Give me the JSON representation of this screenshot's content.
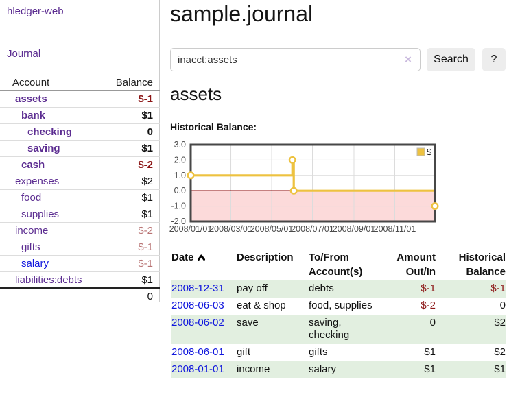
{
  "colors": {
    "link_purple": "#5c2d91",
    "link_blue": "#1016dd",
    "neg_strong": "#8b1414",
    "neg_soft": "#b87272",
    "row_green": "#e2efe0",
    "accent_gold": "#edc240"
  },
  "app": {
    "title": "hledger-web",
    "nav_journal_label": "Journal"
  },
  "sidebar": {
    "header": {
      "account": "Account",
      "balance": "Balance"
    },
    "accounts": [
      {
        "name": "assets",
        "balance": "$-1",
        "depth": 1,
        "bold": true,
        "balance_tone": "neg-strong"
      },
      {
        "name": "bank",
        "balance": "$1",
        "depth": 2,
        "bold": true,
        "balance_tone": "normal"
      },
      {
        "name": "checking",
        "balance": "0",
        "depth": 3,
        "bold": true,
        "balance_tone": "normal"
      },
      {
        "name": "saving",
        "balance": "$1",
        "depth": 3,
        "bold": true,
        "balance_tone": "normal"
      },
      {
        "name": "cash",
        "balance": "$-2",
        "depth": 2,
        "bold": true,
        "balance_tone": "neg-strong"
      },
      {
        "name": "expenses",
        "balance": "$2",
        "depth": 1,
        "bold": false,
        "balance_tone": "normal"
      },
      {
        "name": "food",
        "balance": "$1",
        "depth": 2,
        "bold": false,
        "balance_tone": "normal"
      },
      {
        "name": "supplies",
        "balance": "$1",
        "depth": 2,
        "bold": false,
        "balance_tone": "normal"
      },
      {
        "name": "income",
        "balance": "$-2",
        "depth": 1,
        "bold": false,
        "balance_tone": "neg-soft"
      },
      {
        "name": "gifts",
        "balance": "$-1",
        "depth": 2,
        "bold": false,
        "balance_tone": "neg-soft"
      },
      {
        "name": "salary",
        "balance": "$-1",
        "depth": 2,
        "bold": false,
        "balance_tone": "neg-soft",
        "link_tone": "unvisited"
      },
      {
        "name": "liabilities:debts",
        "balance": "$1",
        "depth": 1,
        "bold": false,
        "balance_tone": "normal",
        "last": true
      }
    ],
    "total": "0"
  },
  "main": {
    "title": "sample.journal",
    "search": {
      "value": "inacct:assets",
      "clear_icon": "×",
      "button_label": "Search",
      "help_label": "?"
    },
    "account_heading": "assets",
    "section_label": "Historical Balance:"
  },
  "chart_data": {
    "type": "line",
    "step": true,
    "title": "Historical Balance:",
    "x_domain": [
      "2008-01-01",
      "2008-12-31"
    ],
    "ylim": [
      -2.0,
      3.0
    ],
    "yticks": [
      "3.0",
      "2.0",
      "1.0",
      "0.0",
      "-1.0",
      "-2.0"
    ],
    "xticks": [
      "2008/01/01",
      "2008/03/01",
      "2008/05/01",
      "2008/07/01",
      "2008/09/01",
      "2008/11/01"
    ],
    "series": [
      {
        "name": "$",
        "color": "#edc240",
        "points": [
          [
            "2008-01-01",
            1
          ],
          [
            "2008-06-01",
            2
          ],
          [
            "2008-06-03",
            0
          ],
          [
            "2008-12-31",
            -1
          ]
        ]
      }
    ],
    "legend": {
      "label": "$",
      "position": "top-right"
    },
    "grid": {
      "on": true,
      "line_color": "#dcdcdc",
      "border_color": "#474747",
      "negative_fill": "#fcdada",
      "zero_line_color": "#8b0000",
      "tick_color": "#4a4a4a"
    }
  },
  "register": {
    "headers": {
      "date": "Date",
      "description": "Description",
      "accounts": "To/From Account(s)",
      "amount": "Amount Out/In",
      "balance": "Historical Balance"
    },
    "rows": [
      {
        "date": "2008-12-31",
        "description": "pay off",
        "accounts": "debts",
        "amount": "$-1",
        "amount_negative": true,
        "balance": "$-1",
        "balance_negative": true
      },
      {
        "date": "2008-06-03",
        "description": "eat & shop",
        "accounts": "food, supplies",
        "amount": "$-2",
        "amount_negative": true,
        "balance": "0",
        "balance_negative": false
      },
      {
        "date": "2008-06-02",
        "description": "save",
        "accounts": "saving, checking",
        "amount": "0",
        "amount_negative": false,
        "balance": "$2",
        "balance_negative": false
      },
      {
        "date": "2008-06-01",
        "description": "gift",
        "accounts": "gifts",
        "amount": "$1",
        "amount_negative": false,
        "balance": "$2",
        "balance_negative": false
      },
      {
        "date": "2008-01-01",
        "description": "income",
        "accounts": "salary",
        "amount": "$1",
        "amount_negative": false,
        "balance": "$1",
        "balance_negative": false
      }
    ]
  }
}
